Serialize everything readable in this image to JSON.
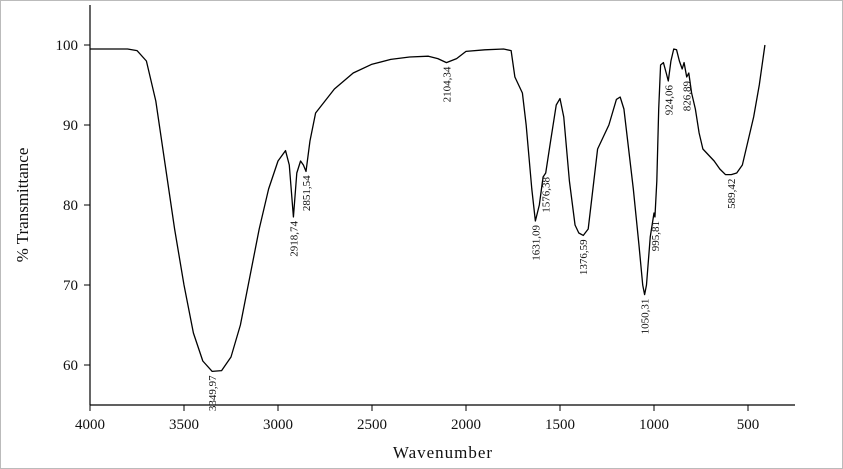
{
  "chart_data": {
    "type": "line",
    "xlabel": "Wavenumber",
    "ylabel": "% Transmittance",
    "xlim": [
      4000,
      250
    ],
    "ylim": [
      55,
      105
    ],
    "xticks": [
      4000,
      3500,
      3000,
      2500,
      2000,
      1500,
      1000,
      500
    ],
    "yticks": [
      60,
      70,
      80,
      90,
      100
    ],
    "series": [
      {
        "color": "#000000",
        "x": [
          4000,
          3800,
          3750,
          3700,
          3650,
          3600,
          3550,
          3500,
          3450,
          3400,
          3350,
          3300,
          3250,
          3200,
          3150,
          3100,
          3050,
          3000,
          2960,
          2940,
          2918,
          2900,
          2880,
          2865,
          2851,
          2830,
          2800,
          2750,
          2700,
          2600,
          2500,
          2400,
          2300,
          2200,
          2150,
          2104,
          2050,
          2000,
          1900,
          1800,
          1760,
          1740,
          1700,
          1680,
          1650,
          1631,
          1610,
          1590,
          1576,
          1550,
          1520,
          1500,
          1480,
          1450,
          1420,
          1400,
          1376,
          1350,
          1320,
          1300,
          1270,
          1240,
          1200,
          1180,
          1160,
          1140,
          1110,
          1080,
          1060,
          1050,
          1040,
          1020,
          1000,
          995,
          985,
          975,
          965,
          950,
          935,
          924,
          910,
          895,
          880,
          865,
          850,
          840,
          826,
          815,
          800,
          780,
          760,
          740,
          720,
          700,
          680,
          650,
          620,
          589,
          560,
          530,
          500,
          470,
          440,
          410
        ],
        "values": [
          99.5,
          99.5,
          99.3,
          98,
          93,
          85,
          77,
          70,
          64,
          60.5,
          59.2,
          59.3,
          61,
          65,
          71,
          77,
          82,
          85.5,
          86.8,
          85,
          78.5,
          84,
          85.5,
          85,
          84.2,
          88,
          91.5,
          93,
          94.5,
          96.5,
          97.6,
          98.2,
          98.5,
          98.6,
          98.3,
          97.8,
          98.3,
          99.2,
          99.4,
          99.5,
          99.3,
          96,
          94,
          90,
          82,
          78,
          80,
          83.5,
          84,
          88,
          92.5,
          93.3,
          91,
          83,
          77.5,
          76.5,
          76.2,
          77,
          83,
          87,
          88.5,
          90,
          93.2,
          93.5,
          92,
          88,
          82,
          75,
          70,
          68.8,
          70,
          76,
          79,
          78.5,
          83,
          92,
          97.5,
          97.8,
          96.5,
          95.5,
          98,
          99.5,
          99.4,
          98,
          97,
          97.8,
          96,
          96.5,
          94,
          92,
          89,
          87,
          86.5,
          86,
          85.5,
          84.5,
          83.8,
          83.8,
          84,
          85,
          88,
          91,
          95,
          100
        ]
      }
    ],
    "annotations": [
      {
        "label": "3349,97",
        "x": 3349.97,
        "y": 59.2
      },
      {
        "label": "2918,74",
        "x": 2918.74,
        "y": 78.5
      },
      {
        "label": "2851,54",
        "x": 2851.54,
        "y": 84.2
      },
      {
        "label": "2104,34",
        "x": 2104.34,
        "y": 97.8
      },
      {
        "label": "1631,09",
        "x": 1631.09,
        "y": 78
      },
      {
        "label": "1576,38",
        "x": 1576.38,
        "y": 84
      },
      {
        "label": "1376,59",
        "x": 1376.59,
        "y": 76.2
      },
      {
        "label": "1050,31",
        "x": 1050.31,
        "y": 68.8
      },
      {
        "label": "995,81",
        "x": 995.81,
        "y": 78.5
      },
      {
        "label": "924,06",
        "x": 924.06,
        "y": 95.5
      },
      {
        "label": "826,89",
        "x": 826.89,
        "y": 96
      },
      {
        "label": "589,42",
        "x": 589.42,
        "y": 83.8
      }
    ]
  }
}
